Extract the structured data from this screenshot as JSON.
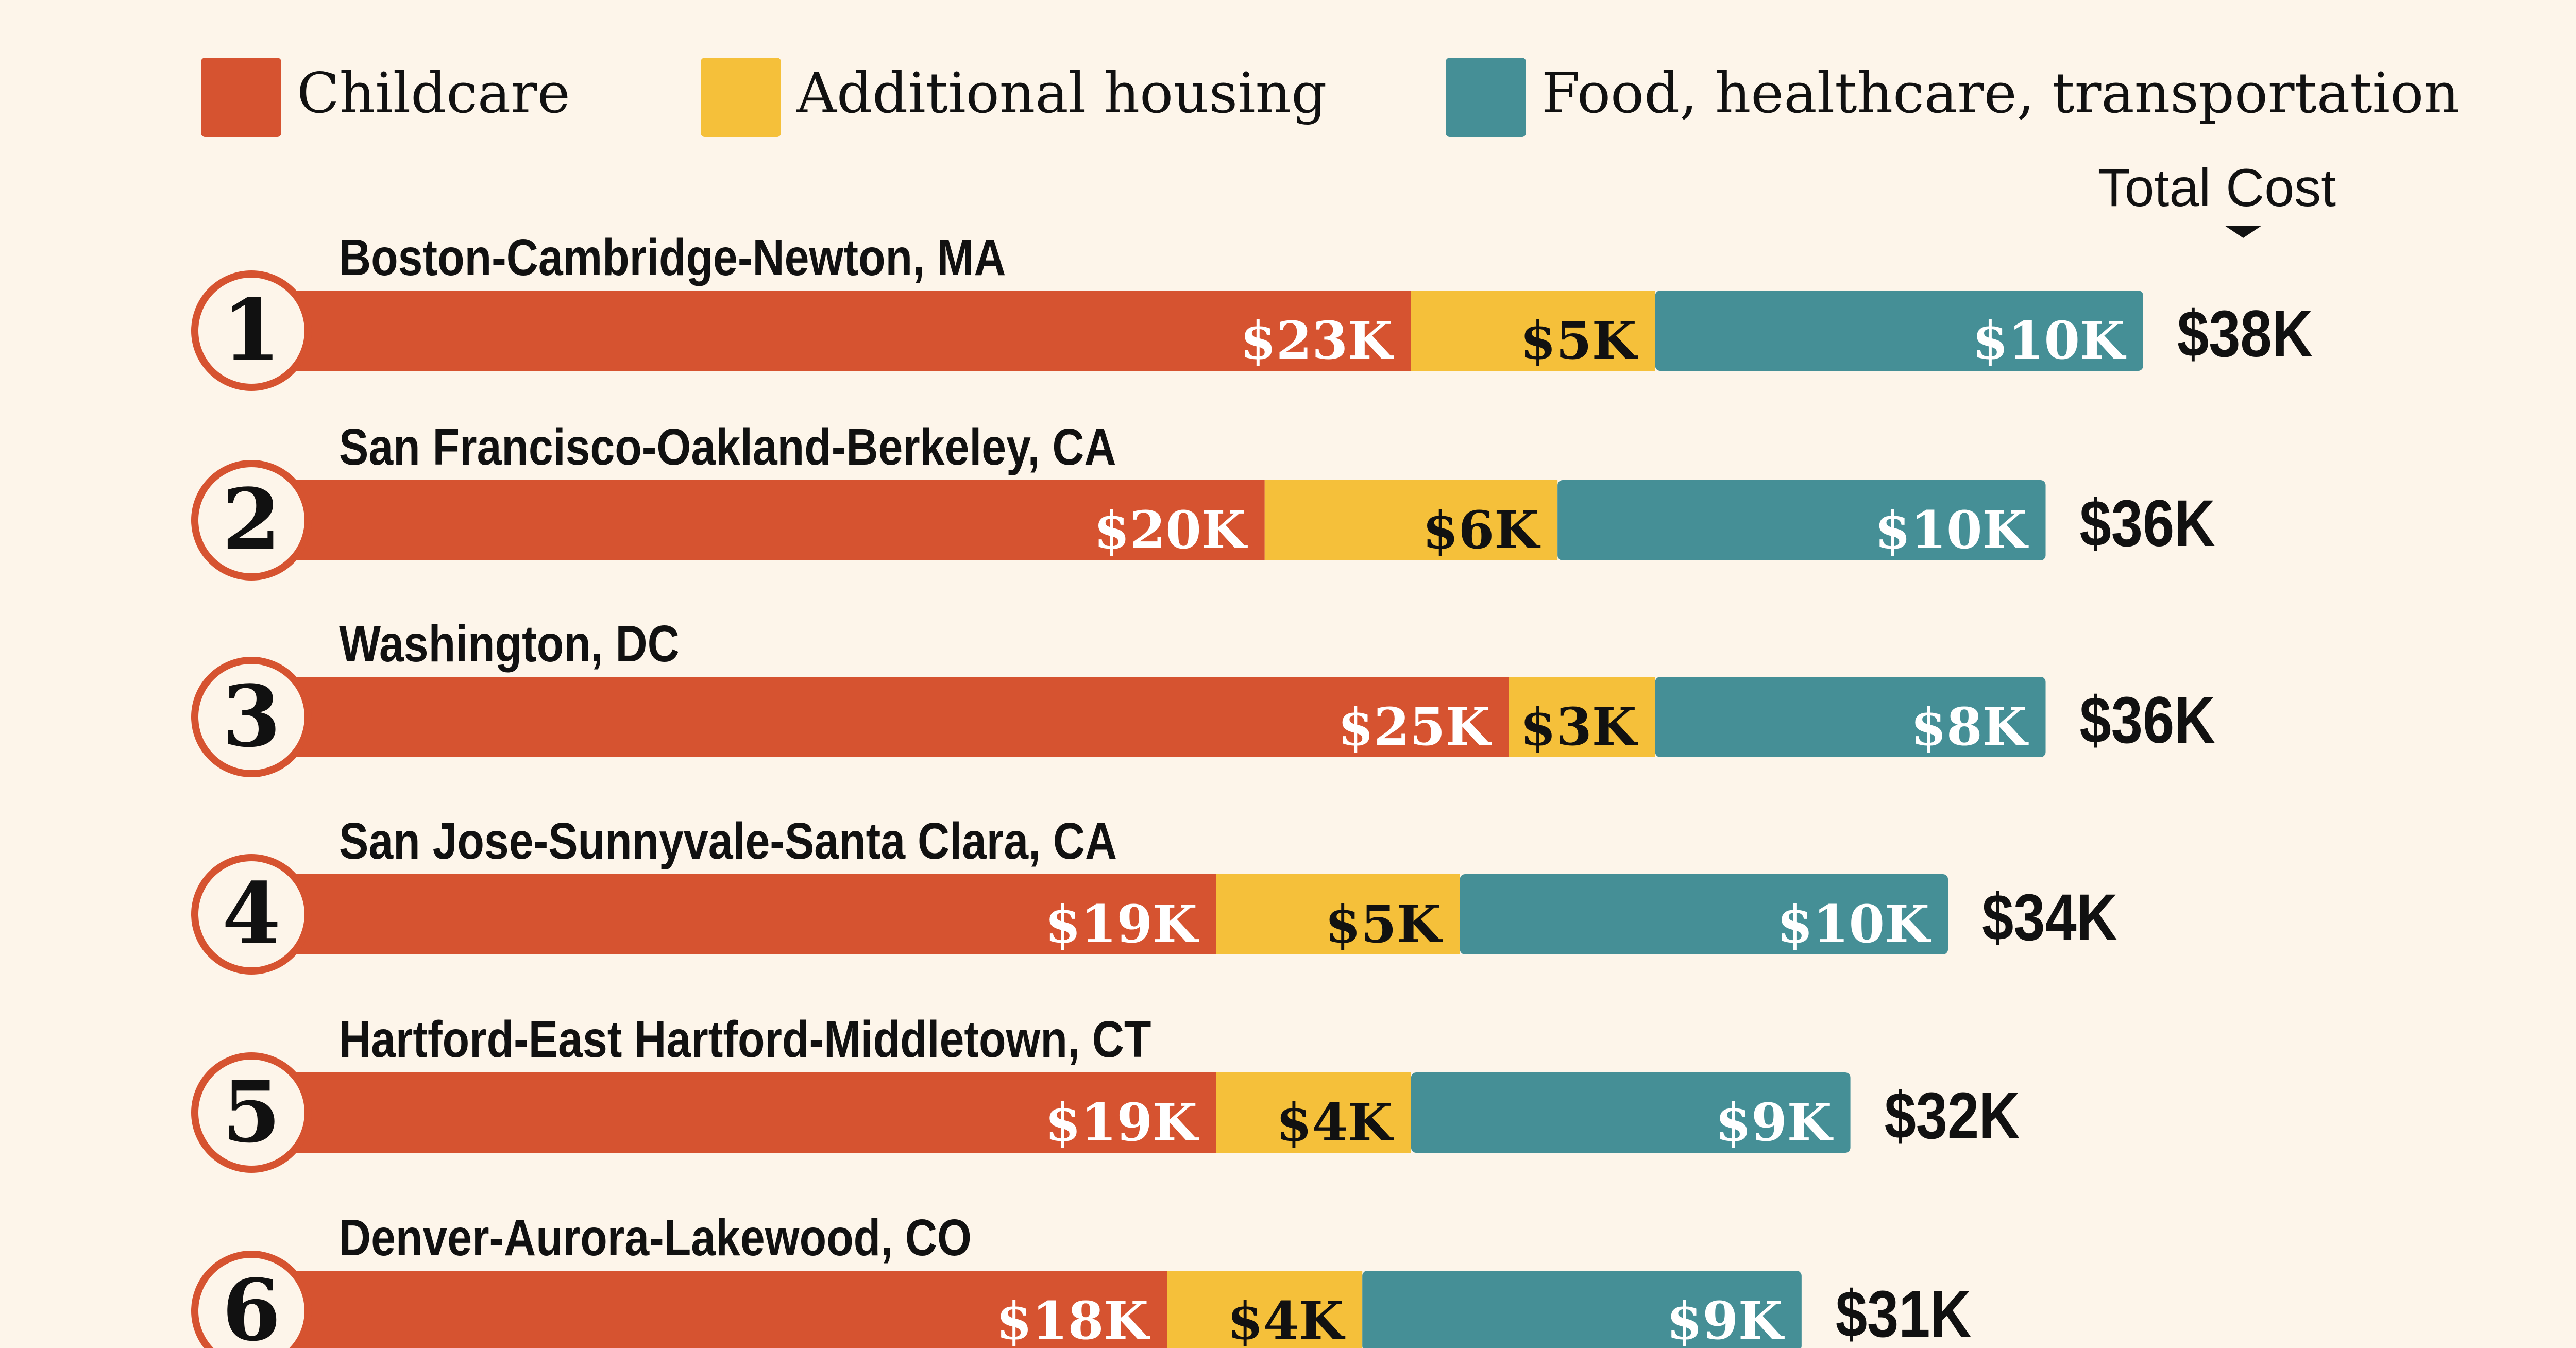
{
  "colors": {
    "background": "#fdf5ea",
    "childcare": "#d65330",
    "housing": "#f5c03a",
    "food": "#458f96",
    "text": "#111111",
    "value_text": "#ffffff"
  },
  "chart_data": {
    "type": "bar",
    "stacked": true,
    "orientation": "horizontal",
    "legend_position": "top",
    "total_header": "Total Cost",
    "series": [
      {
        "name": "Childcare",
        "color": "#d65330",
        "values": [
          23,
          20,
          25,
          19,
          19,
          18
        ],
        "labels": [
          "$23K",
          "$20K",
          "$25K",
          "$19K",
          "$19K",
          "$18K"
        ]
      },
      {
        "name": "Additional housing",
        "color": "#f5c03a",
        "values": [
          5,
          6,
          3,
          5,
          4,
          4
        ],
        "labels": [
          "$5K",
          "$6K",
          "$3K",
          "$5K",
          "$4K",
          "$4K"
        ]
      },
      {
        "name": "Food, healthcare, transportation",
        "color": "#458f96",
        "values": [
          10,
          10,
          8,
          10,
          9,
          9
        ],
        "labels": [
          "$10K",
          "$10K",
          "$8K",
          "$10K",
          "$9K",
          "$9K"
        ]
      }
    ],
    "categories": [
      {
        "rank": "1",
        "name": "Boston-Cambridge-Newton, MA",
        "total": 38,
        "total_label": "$38K"
      },
      {
        "rank": "2",
        "name": "San Francisco-Oakland-Berkeley, CA",
        "total": 36,
        "total_label": "$36K"
      },
      {
        "rank": "3",
        "name": "Washington, DC",
        "total": 36,
        "total_label": "$36K"
      },
      {
        "rank": "4",
        "name": "San Jose-Sunnyvale-Santa Clara, CA",
        "total": 34,
        "total_label": "$34K"
      },
      {
        "rank": "5",
        "name": "Hartford-East Hartford-Middletown, CT",
        "total": 32,
        "total_label": "$32K"
      },
      {
        "rank": "6",
        "name": "Denver-Aurora-Lakewood, CO",
        "total": 31,
        "total_label": "$31K"
      }
    ]
  }
}
